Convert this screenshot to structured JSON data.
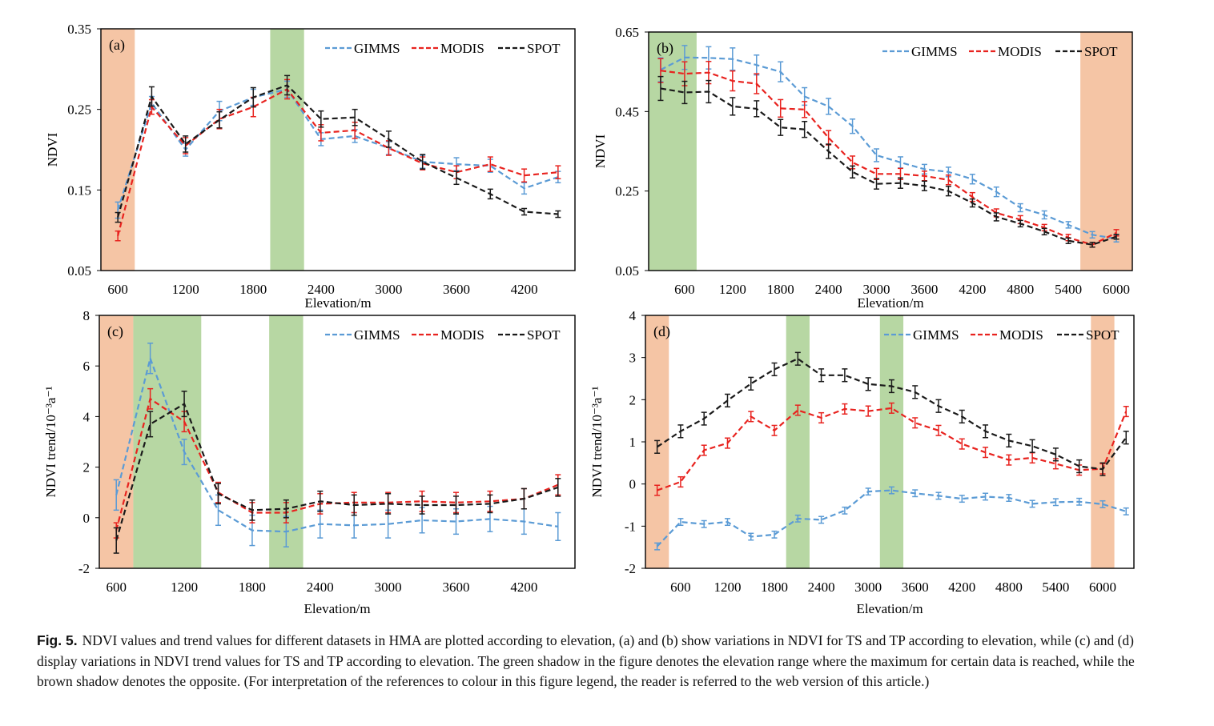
{
  "figure_label": "Fig. 5.",
  "caption": "NDVI values and trend values for different datasets in HMA are plotted according to elevation, (a) and (b) show variations in NDVI for TS and TP according to elevation, while (c) and (d) display variations in NDVI trend values for TS and TP according to elevation. The green shadow in the figure denotes the elevation range where the maximum for certain data is reached, while the brown shadow denotes the opposite. (For interpretation of the references to colour in this figure legend, the reader is referred to the web version of this article.)",
  "colors": {
    "GIMMS": "#5b9bd5",
    "MODIS": "#e8231f",
    "SPOT": "#1a1a1a",
    "brown_shade": "#f5c5a5",
    "green_shade": "#b7d7a3"
  },
  "chart_data": [
    {
      "id": "a",
      "type": "line",
      "panel_label": "(a)",
      "xlabel": "Elevation/m",
      "ylabel": "NDVI",
      "xlim": [
        450,
        4650
      ],
      "ylim": [
        0.05,
        0.35
      ],
      "xticks": [
        600,
        1200,
        1800,
        2400,
        3000,
        3600,
        4200
      ],
      "yticks": [
        0.05,
        0.15,
        0.25,
        0.35
      ],
      "ytick_labels": [
        "0.05",
        "0.15",
        "0.25",
        "0.35"
      ],
      "legend": [
        "GIMMS",
        "MODIS",
        "SPOT"
      ],
      "legend_position": "top-right",
      "shades": [
        {
          "color": "brown",
          "from": 450,
          "to": 750
        },
        {
          "color": "green",
          "from": 1950,
          "to": 2250
        }
      ],
      "x": [
        600,
        900,
        1200,
        1500,
        1800,
        2100,
        2400,
        2700,
        3000,
        3300,
        3600,
        3900,
        4200,
        4500
      ],
      "series": [
        {
          "name": "GIMMS",
          "values": [
            0.125,
            0.258,
            0.2,
            0.248,
            0.265,
            0.275,
            0.213,
            0.217,
            0.202,
            0.185,
            0.182,
            0.18,
            0.152,
            0.166
          ],
          "err": [
            0.01,
            0.008,
            0.008,
            0.012,
            0.01,
            0.01,
            0.008,
            0.008,
            0.008,
            0.008,
            0.008,
            0.008,
            0.007,
            0.007
          ]
        },
        {
          "name": "MODIS",
          "values": [
            0.093,
            0.253,
            0.205,
            0.238,
            0.253,
            0.275,
            0.221,
            0.224,
            0.202,
            0.183,
            0.172,
            0.182,
            0.168,
            0.172
          ],
          "err": [
            0.006,
            0.009,
            0.01,
            0.012,
            0.012,
            0.012,
            0.01,
            0.01,
            0.009,
            0.008,
            0.008,
            0.009,
            0.008,
            0.008
          ]
        },
        {
          "name": "SPOT",
          "values": [
            0.116,
            0.266,
            0.207,
            0.237,
            0.265,
            0.28,
            0.238,
            0.24,
            0.213,
            0.185,
            0.165,
            0.145,
            0.123,
            0.12
          ],
          "err": [
            0.006,
            0.012,
            0.01,
            0.01,
            0.012,
            0.012,
            0.01,
            0.01,
            0.01,
            0.009,
            0.008,
            0.006,
            0.004,
            0.004
          ]
        }
      ]
    },
    {
      "id": "b",
      "type": "line",
      "panel_label": "(b)",
      "xlabel": "Elevation/m",
      "ylabel": "NDVI",
      "xlim": [
        150,
        6200
      ],
      "ylim": [
        0.05,
        0.65
      ],
      "xticks": [
        600,
        1200,
        1800,
        2400,
        3000,
        3600,
        4200,
        4800,
        5400,
        6000
      ],
      "yticks": [
        0.05,
        0.25,
        0.45,
        0.65
      ],
      "ytick_labels": [
        "0.05",
        "0.25",
        "0.45",
        "0.65"
      ],
      "legend": [
        "GIMMS",
        "MODIS",
        "SPOT"
      ],
      "legend_position": "top-right",
      "shades": [
        {
          "color": "green",
          "from": 150,
          "to": 750
        },
        {
          "color": "brown",
          "from": 5550,
          "to": 6200
        }
      ],
      "x": [
        300,
        600,
        900,
        1200,
        1500,
        1800,
        2100,
        2400,
        2700,
        3000,
        3300,
        3600,
        3900,
        4200,
        4500,
        4800,
        5100,
        5400,
        5700,
        6000
      ],
      "series": [
        {
          "name": "GIMMS",
          "values": [
            0.555,
            0.586,
            0.585,
            0.582,
            0.567,
            0.55,
            0.488,
            0.463,
            0.413,
            0.34,
            0.322,
            0.305,
            0.298,
            0.28,
            0.248,
            0.208,
            0.19,
            0.165,
            0.14,
            0.13
          ],
          "err": [
            0.03,
            0.03,
            0.028,
            0.028,
            0.025,
            0.025,
            0.022,
            0.02,
            0.018,
            0.016,
            0.014,
            0.012,
            0.012,
            0.012,
            0.012,
            0.01,
            0.01,
            0.008,
            0.008,
            0.008
          ]
        },
        {
          "name": "MODIS",
          "values": [
            0.553,
            0.545,
            0.548,
            0.527,
            0.52,
            0.458,
            0.455,
            0.384,
            0.322,
            0.293,
            0.293,
            0.288,
            0.278,
            0.235,
            0.195,
            0.178,
            0.158,
            0.133,
            0.115,
            0.145
          ],
          "err": [
            0.03,
            0.03,
            0.028,
            0.025,
            0.025,
            0.022,
            0.02,
            0.018,
            0.016,
            0.014,
            0.014,
            0.012,
            0.012,
            0.011,
            0.01,
            0.01,
            0.008,
            0.008,
            0.006,
            0.008
          ]
        },
        {
          "name": "SPOT",
          "values": [
            0.508,
            0.498,
            0.5,
            0.463,
            0.457,
            0.41,
            0.405,
            0.35,
            0.298,
            0.268,
            0.27,
            0.263,
            0.25,
            0.22,
            0.185,
            0.168,
            0.148,
            0.125,
            0.115,
            0.135
          ],
          "err": [
            0.03,
            0.028,
            0.028,
            0.022,
            0.02,
            0.02,
            0.02,
            0.018,
            0.015,
            0.013,
            0.013,
            0.012,
            0.012,
            0.01,
            0.01,
            0.008,
            0.008,
            0.007,
            0.006,
            0.006
          ]
        }
      ]
    },
    {
      "id": "c",
      "type": "line",
      "panel_label": "(c)",
      "xlabel": "Elevation/m",
      "ylabel": "NDVI trend/10⁻³a⁻¹",
      "xlim": [
        450,
        4650
      ],
      "ylim": [
        -2,
        8
      ],
      "xticks": [
        600,
        1200,
        1800,
        2400,
        3000,
        3600,
        4200
      ],
      "yticks": [
        -2,
        0,
        2,
        4,
        6,
        8
      ],
      "ytick_labels": [
        "-2",
        "0",
        "2",
        "4",
        "6",
        "8"
      ],
      "legend": [
        "GIMMS",
        "MODIS",
        "SPOT"
      ],
      "legend_position": "top-right",
      "shades": [
        {
          "color": "brown",
          "from": 450,
          "to": 750
        },
        {
          "color": "green",
          "from": 750,
          "to": 1350
        },
        {
          "color": "green",
          "from": 1950,
          "to": 2250
        }
      ],
      "x": [
        600,
        900,
        1200,
        1500,
        1800,
        2100,
        2400,
        2700,
        3000,
        3300,
        3600,
        3900,
        4200,
        4500
      ],
      "series": [
        {
          "name": "GIMMS",
          "values": [
            0.9,
            6.3,
            2.6,
            0.3,
            -0.5,
            -0.55,
            -0.25,
            -0.3,
            -0.25,
            -0.1,
            -0.15,
            -0.05,
            -0.15,
            -0.35
          ],
          "err": [
            0.6,
            0.6,
            0.5,
            0.6,
            0.6,
            0.6,
            0.55,
            0.5,
            0.55,
            0.5,
            0.5,
            0.5,
            0.5,
            0.55
          ]
        },
        {
          "name": "MODIS",
          "values": [
            -0.5,
            4.7,
            3.8,
            1.0,
            0.2,
            0.2,
            0.55,
            0.6,
            0.6,
            0.65,
            0.6,
            0.65,
            0.75,
            1.3
          ],
          "err": [
            0.3,
            0.4,
            0.4,
            0.4,
            0.4,
            0.4,
            0.4,
            0.4,
            0.4,
            0.4,
            0.4,
            0.4,
            0.4,
            0.4
          ]
        },
        {
          "name": "SPOT",
          "values": [
            -0.9,
            3.7,
            4.5,
            0.95,
            0.3,
            0.35,
            0.65,
            0.5,
            0.55,
            0.5,
            0.5,
            0.55,
            0.75,
            1.2
          ],
          "err": [
            0.5,
            0.5,
            0.5,
            0.4,
            0.4,
            0.35,
            0.4,
            0.4,
            0.4,
            0.35,
            0.35,
            0.35,
            0.4,
            0.35
          ]
        }
      ]
    },
    {
      "id": "d",
      "type": "line",
      "panel_label": "(d)",
      "xlabel": "Elevation/m",
      "ylabel": "NDVI trend/10⁻³a⁻¹",
      "xlim": [
        150,
        6400
      ],
      "ylim": [
        -2,
        4
      ],
      "xticks": [
        600,
        1200,
        1800,
        2400,
        3000,
        3600,
        4200,
        4800,
        5400,
        6000
      ],
      "yticks": [
        -2,
        -1,
        0,
        1,
        2,
        3,
        4
      ],
      "ytick_labels": [
        "-2",
        "-1",
        "0",
        "1",
        "2",
        "3",
        "4"
      ],
      "legend": [
        "GIMMS",
        "MODIS",
        "SPOT"
      ],
      "legend_position": "top-right",
      "shades": [
        {
          "color": "brown",
          "from": 150,
          "to": 450
        },
        {
          "color": "green",
          "from": 1950,
          "to": 2250
        },
        {
          "color": "green",
          "from": 3150,
          "to": 3450
        },
        {
          "color": "brown",
          "from": 5850,
          "to": 6150
        }
      ],
      "x": [
        300,
        600,
        900,
        1200,
        1500,
        1800,
        2100,
        2400,
        2700,
        3000,
        3300,
        3600,
        3900,
        4200,
        4500,
        4800,
        5100,
        5400,
        5700,
        6000,
        6300
      ],
      "series": [
        {
          "name": "GIMMS",
          "values": [
            -1.48,
            -0.9,
            -0.95,
            -0.9,
            -1.25,
            -1.2,
            -0.82,
            -0.85,
            -0.63,
            -0.18,
            -0.15,
            -0.22,
            -0.28,
            -0.35,
            -0.3,
            -0.33,
            -0.47,
            -0.43,
            -0.42,
            -0.48,
            -0.65
          ],
          "err": [
            0.08,
            0.08,
            0.08,
            0.08,
            0.08,
            0.08,
            0.08,
            0.08,
            0.08,
            0.08,
            0.08,
            0.08,
            0.08,
            0.08,
            0.08,
            0.08,
            0.08,
            0.08,
            0.08,
            0.08,
            0.08
          ]
        },
        {
          "name": "MODIS",
          "values": [
            -0.15,
            0.05,
            0.8,
            0.97,
            1.6,
            1.27,
            1.75,
            1.57,
            1.78,
            1.73,
            1.8,
            1.45,
            1.27,
            0.95,
            0.75,
            0.57,
            0.62,
            0.48,
            0.33,
            0.36,
            1.72
          ],
          "err": [
            0.12,
            0.12,
            0.12,
            0.12,
            0.12,
            0.12,
            0.12,
            0.12,
            0.12,
            0.12,
            0.12,
            0.12,
            0.12,
            0.12,
            0.12,
            0.12,
            0.12,
            0.12,
            0.12,
            0.12,
            0.12
          ]
        },
        {
          "name": "SPOT",
          "values": [
            0.88,
            1.25,
            1.55,
            1.98,
            2.38,
            2.72,
            2.97,
            2.58,
            2.58,
            2.37,
            2.32,
            2.18,
            1.85,
            1.6,
            1.25,
            1.03,
            0.9,
            0.7,
            0.42,
            0.35,
            1.1
          ],
          "err": [
            0.15,
            0.15,
            0.15,
            0.15,
            0.15,
            0.15,
            0.15,
            0.15,
            0.15,
            0.15,
            0.15,
            0.15,
            0.15,
            0.15,
            0.15,
            0.15,
            0.15,
            0.15,
            0.15,
            0.15,
            0.15
          ]
        }
      ]
    }
  ]
}
